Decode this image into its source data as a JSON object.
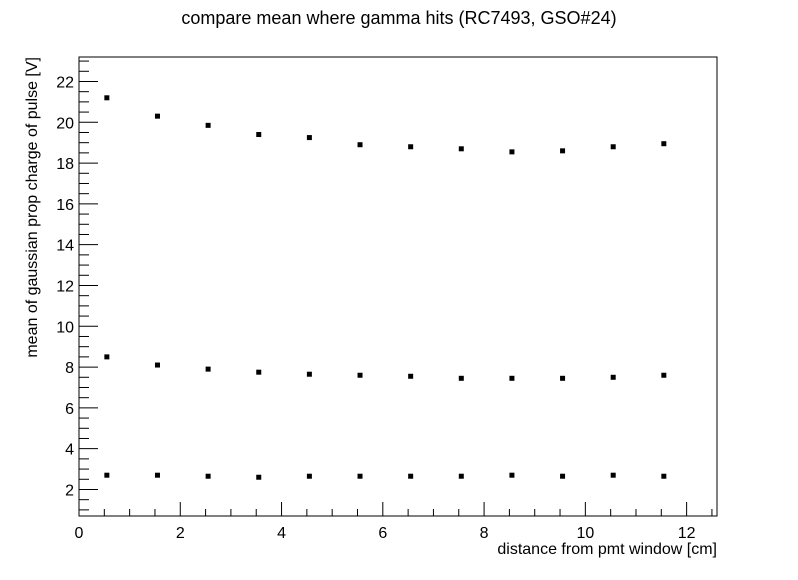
{
  "chart_data": {
    "type": "scatter",
    "title": "compare mean where gamma hits (RC7493, GSO#24)",
    "xlabel": "distance from pmt window [cm]",
    "ylabel": "mean of gaussian prop charge of pulse [V]",
    "xlim": [
      0,
      12.6
    ],
    "ylim": [
      0.7,
      23.2
    ],
    "x_ticks": [
      0,
      2,
      4,
      6,
      8,
      10,
      12
    ],
    "y_ticks": [
      2,
      4,
      6,
      8,
      10,
      12,
      14,
      16,
      18,
      20,
      22
    ],
    "grid": false,
    "marker_color": "#000000",
    "series": [
      {
        "x": [
          0.55,
          1.55,
          2.55,
          3.55,
          4.55,
          5.55,
          6.55,
          7.55,
          8.55,
          9.55,
          10.55,
          11.55
        ],
        "y": [
          21.2,
          20.3,
          19.85,
          19.4,
          19.25,
          18.9,
          18.8,
          18.7,
          18.55,
          18.6,
          18.8,
          18.95
        ]
      },
      {
        "x": [
          0.55,
          1.55,
          2.55,
          3.55,
          4.55,
          5.55,
          6.55,
          7.55,
          8.55,
          9.55,
          10.55,
          11.55
        ],
        "y": [
          8.5,
          8.1,
          7.9,
          7.75,
          7.65,
          7.6,
          7.55,
          7.45,
          7.45,
          7.45,
          7.5,
          7.6
        ]
      },
      {
        "x": [
          0.55,
          1.55,
          2.55,
          3.55,
          4.55,
          5.55,
          6.55,
          7.55,
          8.55,
          9.55,
          10.55,
          11.55
        ],
        "y": [
          2.7,
          2.7,
          2.65,
          2.6,
          2.65,
          2.65,
          2.65,
          2.65,
          2.7,
          2.65,
          2.7,
          2.65
        ]
      }
    ]
  }
}
